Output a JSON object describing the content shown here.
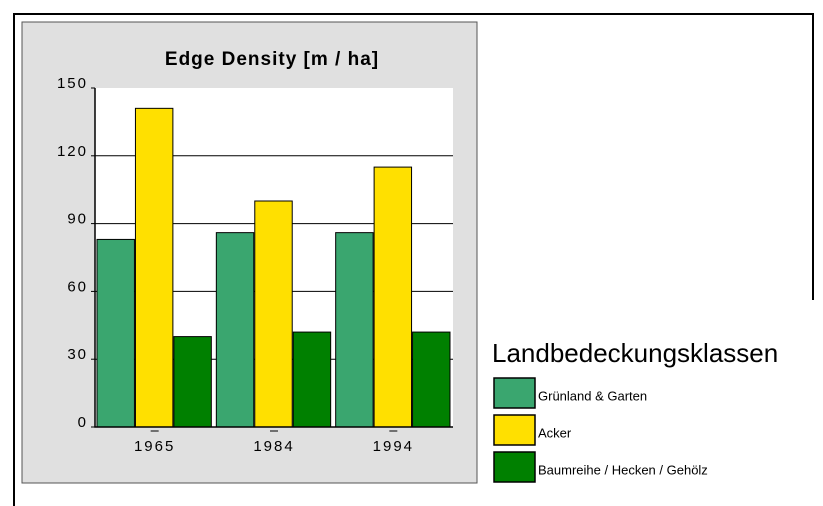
{
  "chart_data": {
    "type": "bar",
    "title": "Edge Density [m / ha]",
    "categories": [
      "1965",
      "1984",
      "1994"
    ],
    "series": [
      {
        "name": "Grünland & Garten",
        "color": "#3aa66f",
        "values": [
          83,
          86,
          86
        ]
      },
      {
        "name": "Acker",
        "color": "#ffe000",
        "values": [
          141,
          100,
          115
        ]
      },
      {
        "name": "Baumreihe / Hecken / Gehölz",
        "color": "#008000",
        "values": [
          40,
          42,
          42
        ]
      }
    ],
    "ylim": [
      0,
      150
    ],
    "yticks": [
      0,
      30,
      60,
      90,
      120,
      150
    ],
    "grid": true,
    "legend_title": "Landbedeckungsklassen",
    "legend": "right"
  }
}
